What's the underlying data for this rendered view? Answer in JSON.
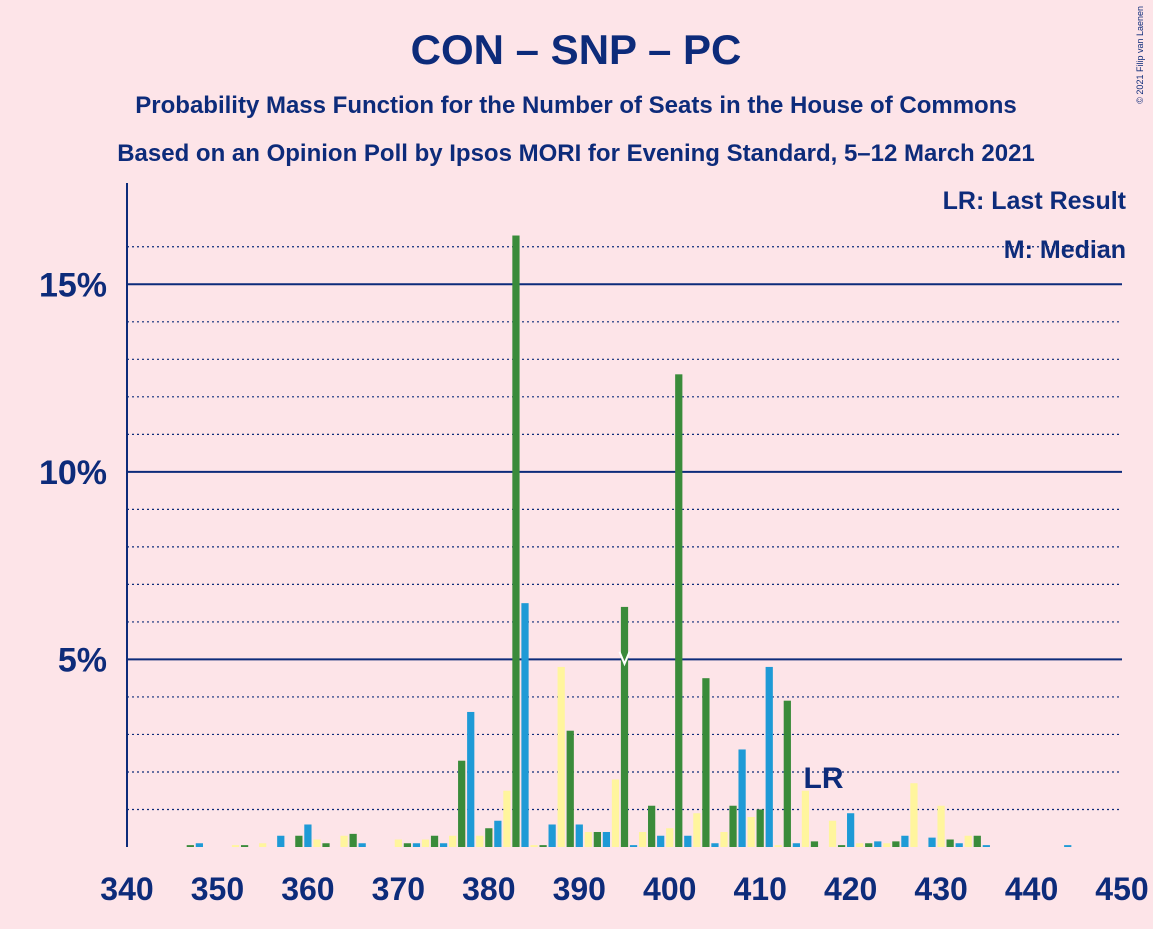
{
  "chart_data": {
    "type": "bar",
    "title": "CON – SNP – PC",
    "subtitle": "Probability Mass Function for the Number of Seats in the House of Commons",
    "subtitle2": "Based on an Opinion Poll by Ipsos MORI for Evening Standard, 5–12 March 2021",
    "credit": "© 2021 Filip van Laenen",
    "legend_lr": "LR: Last Result",
    "legend_m": "M: Median",
    "lr_label": "LR",
    "last_result": 417,
    "median": 395,
    "x": [
      340,
      341,
      342,
      343,
      344,
      345,
      346,
      347,
      348,
      349,
      350,
      351,
      352,
      353,
      354,
      355,
      356,
      357,
      358,
      359,
      360,
      361,
      362,
      363,
      364,
      365,
      366,
      367,
      368,
      369,
      370,
      371,
      372,
      373,
      374,
      375,
      376,
      377,
      378,
      379,
      380,
      381,
      382,
      383,
      384,
      385,
      386,
      387,
      388,
      389,
      390,
      391,
      392,
      393,
      394,
      395,
      396,
      397,
      398,
      399,
      400,
      401,
      402,
      403,
      404,
      405,
      406,
      407,
      408,
      409,
      410,
      411,
      412,
      413,
      414,
      415,
      416,
      417,
      418,
      419,
      420,
      421,
      422,
      423,
      424,
      425,
      426,
      427,
      428,
      429,
      430,
      431,
      432,
      433,
      434,
      435,
      436,
      437,
      438,
      439,
      440,
      441,
      442,
      443,
      444,
      445,
      446,
      447,
      448,
      449,
      450
    ],
    "values": [
      0,
      0,
      0,
      0,
      0,
      0,
      0,
      0.05,
      0.1,
      0,
      0,
      0,
      0.05,
      0.05,
      0,
      0.1,
      0,
      0.3,
      0,
      0.3,
      0.6,
      0.2,
      0.1,
      0,
      0.3,
      0.35,
      0.1,
      0,
      0,
      0,
      0.2,
      0.1,
      0.1,
      0.2,
      0.3,
      0.1,
      0.3,
      2.3,
      3.6,
      0.3,
      0.5,
      0.7,
      1.5,
      16.3,
      6.5,
      0.05,
      0.05,
      0.6,
      4.8,
      3.1,
      0.6,
      0.4,
      0.4,
      0.4,
      1.8,
      6.4,
      0.05,
      0.4,
      1.1,
      0.3,
      0.5,
      12.6,
      0.3,
      0.9,
      4.5,
      0.1,
      0.4,
      1.1,
      2.6,
      0.8,
      1.0,
      4.8,
      0.05,
      3.9,
      0.1,
      1.5,
      0.15,
      0,
      0.7,
      0.05,
      0.9,
      0.1,
      0.1,
      0.15,
      0.1,
      0.15,
      0.3,
      1.7,
      0,
      0.25,
      1.1,
      0.2,
      0.1,
      0.3,
      0.3,
      0.05,
      0,
      0,
      0,
      0,
      0,
      0,
      0,
      0,
      0.05,
      0,
      0,
      0,
      0,
      0,
      0
    ],
    "colors": [
      "#1e9ad6",
      "#fff59d",
      "#3a8b3a"
    ],
    "xlim": [
      340,
      450
    ],
    "xticks": [
      340,
      350,
      360,
      370,
      380,
      390,
      400,
      410,
      420,
      430,
      440,
      450
    ],
    "ylim": [
      0,
      17.7
    ],
    "yticks": [
      {
        "value": 5,
        "label": "5%"
      },
      {
        "value": 10,
        "label": "10%"
      },
      {
        "value": 15,
        "label": "15%"
      }
    ],
    "minor_yticks": [
      1,
      2,
      3,
      4,
      6,
      7,
      8,
      9,
      11,
      12,
      13,
      14,
      16
    ],
    "grid": true
  }
}
